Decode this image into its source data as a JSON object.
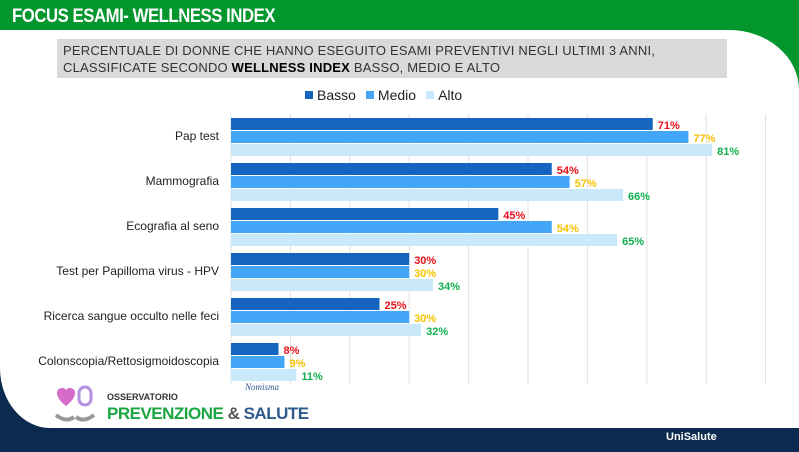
{
  "header": {
    "title": "FOCUS ESAMI- WELLNESS INDEX"
  },
  "subtitle": {
    "pre": "PERCENTUALE DI DONNE CHE HANNO ESEGUITO ESAMI PREVENTIVI NEGLI ULTIMI 3 ANNI, CLASSIFICATE SECONDO ",
    "bold": "WELLNESS INDEX",
    "post": " BASSO, MEDIO E ALTO"
  },
  "footer": {
    "observatory": "OSSERVATORIO",
    "brand_a": "PREVENZIONE",
    "amp": " & ",
    "brand_b": "SALUTE",
    "partner": "Nomisma",
    "company": "UniSalute"
  },
  "chart_data": {
    "type": "bar",
    "orientation": "horizontal",
    "xlim": [
      0,
      90
    ],
    "grid": true,
    "legend": "top",
    "categories": [
      "Pap test",
      "Mammografia",
      "Ecografia al seno",
      "Test per Papilloma virus - HPV",
      "Ricerca sangue occulto nelle feci",
      "Colonscopia/Rettosigmoidoscopia"
    ],
    "series": [
      {
        "name": "Basso",
        "values": [
          71,
          54,
          45,
          30,
          25,
          8
        ],
        "color": "#1565c0",
        "label_color": "#e8101a"
      },
      {
        "name": "Medio",
        "values": [
          77,
          57,
          54,
          30,
          30,
          9
        ],
        "color": "#42a5f5",
        "label_color": "#f5c200"
      },
      {
        "name": "Alto",
        "values": [
          81,
          66,
          65,
          34,
          32,
          11
        ],
        "color": "#c9e8fa",
        "label_color": "#10b050"
      }
    ]
  }
}
